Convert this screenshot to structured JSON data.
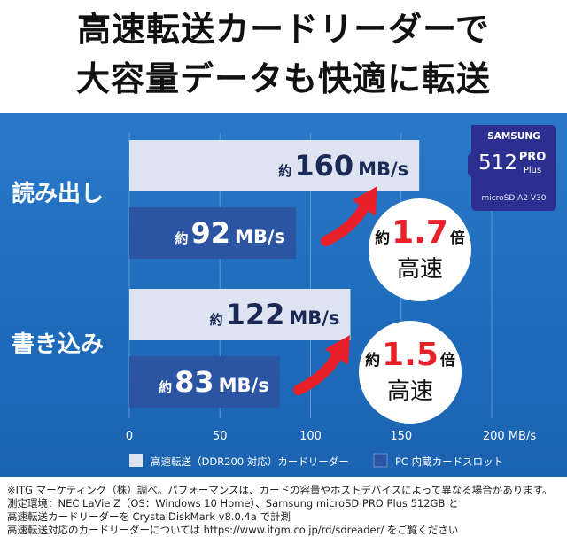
{
  "headline": {
    "line1": "高速転送カードリーダーで",
    "line2": "大容量データも快適に転送"
  },
  "chart_data": {
    "type": "bar",
    "orientation": "horizontal",
    "categories": [
      "読み出し",
      "書き込み"
    ],
    "series": [
      {
        "name": "高速転送（DDR200 対応）カードリーダー",
        "color": "#dde3f1",
        "values": [
          160,
          122
        ]
      },
      {
        "name": "PC 内蔵カードスロット",
        "color": "#2b55a2",
        "values": [
          92,
          83
        ]
      }
    ],
    "xlim": [
      0,
      200
    ],
    "xticks": [
      "0",
      "50",
      "100",
      "150",
      "200 MB/s"
    ],
    "value_labels": [
      {
        "prefix": "約",
        "num": "160",
        "unit": "MB/s"
      },
      {
        "prefix": "約",
        "num": "92",
        "unit": "MB/s"
      },
      {
        "prefix": "約",
        "num": "122",
        "unit": "MB/s"
      },
      {
        "prefix": "約",
        "num": "83",
        "unit": "MB/s"
      }
    ],
    "callouts": [
      {
        "prefix": "約",
        "ratio": "1.7",
        "suffix": "倍",
        "label": "高速"
      },
      {
        "prefix": "約",
        "ratio": "1.5",
        "suffix": "倍",
        "label": "高速"
      }
    ]
  },
  "card": {
    "brand": "SAMSUNG",
    "capacity": "512",
    "model": "PRO",
    "model_sub": "Plus",
    "marks": "microSD A2 V30"
  },
  "footnotes": [
    "※ITG マーケティング（株）調べ。パフォーマンスは、カードの容量やホストデバイスによって異なる場合があります。",
    "測定環境：NEC LaVie Z（OS：Windows 10 Home）、Samsung microSD PRO Plus 512GB と",
    "高速転送カードリーダーを CrystalDiskMark v8.0.4a で計測",
    "高速転送対応のカードリーダーについては https://www.itgm.co.jp/rd/sdreader/ をご覧ください"
  ],
  "colors": {
    "accent_red": "#e8202a",
    "bar_light": "#dde3f1",
    "bar_dark": "#2b55a2",
    "panel_blue": "#1f6cbc",
    "card_navy": "#2c2f8f"
  }
}
